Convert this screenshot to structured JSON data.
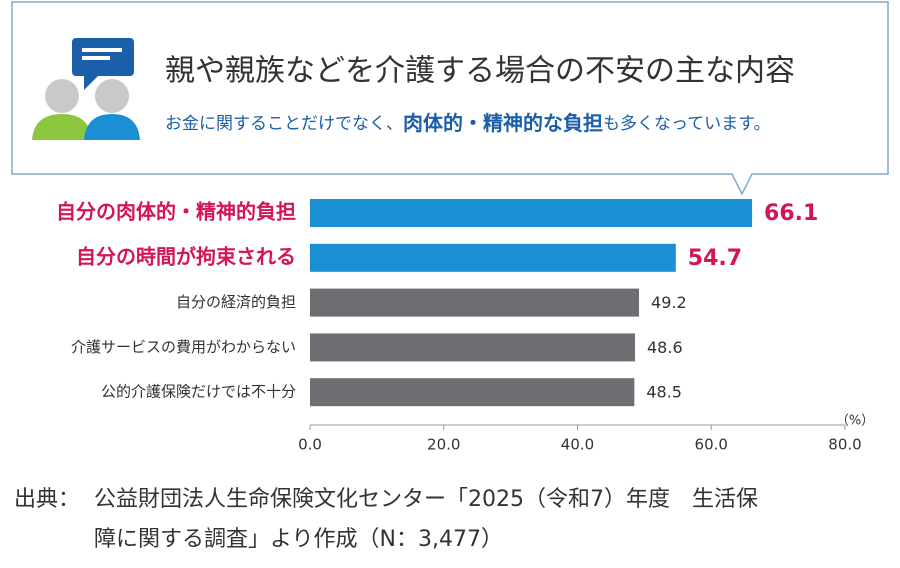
{
  "chart_data": {
    "type": "barh",
    "title": "親や親族などを介護する場合の不安の主な内容",
    "subtitle": [
      "お金に関することだけでなく、",
      "肉体的・精神的な負担",
      "も多くなっています。"
    ],
    "categories": [
      "自分の肉体的・精神的負担",
      "自分の時間が拘束される",
      "自分の経済的負担",
      "介護サービスの費用がわからない",
      "公的介護保険だけでは不十分"
    ],
    "values": [
      66.1,
      54.7,
      49.2,
      48.6,
      48.5
    ],
    "colors": [
      "#1b8fd4",
      "#1b8fd4",
      "#6d6e71",
      "#6d6e71",
      "#6d6e71"
    ],
    "highlighted": [
      true,
      true,
      false,
      false,
      false
    ],
    "highlight_color": "#d3145a",
    "xlim": [
      0,
      80
    ],
    "xticks": [
      {
        "value": 0,
        "label": "0.0"
      },
      {
        "value": 20,
        "label": "20.0"
      },
      {
        "value": 40,
        "label": "40.0"
      },
      {
        "value": 60,
        "label": "60.0"
      },
      {
        "value": 80,
        "label": "80.0"
      }
    ],
    "xlabel": "（%）"
  },
  "source": {
    "label": "出典：",
    "lines": [
      "公益財団法人生命保険文化センター「2025（令和7）年度　生活保",
      "障に関する調査」より作成（N：3,477）"
    ]
  }
}
